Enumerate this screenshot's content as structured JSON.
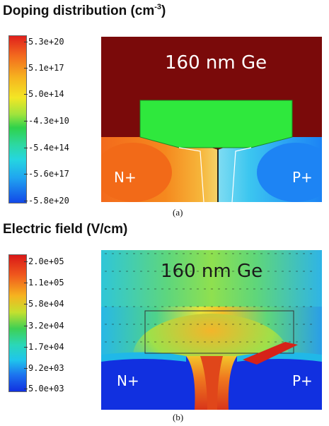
{
  "panel_a": {
    "title_main": "Doping distribution (cm",
    "title_sup": "-3",
    "title_end": ")",
    "colorbar_ticks": [
      "5.3e+20",
      "5.1e+17",
      "5.0e+14",
      "-4.3e+10",
      "-5.4e+14",
      "-5.6e+17",
      "-5.8e+20"
    ],
    "region_ge": "160 nm Ge",
    "region_n": "N+",
    "region_p": "P+",
    "caption": "(a)",
    "colors": {
      "ge": "#7a0a0a",
      "core": "#2ee83a",
      "n_region": "#f57c1e",
      "p_region": "#1f8ff5"
    }
  },
  "panel_b": {
    "title": "Electric field (V/cm)",
    "colorbar_ticks": [
      "2.0e+05",
      "1.1e+05",
      "5.8e+04",
      "3.2e+04",
      "1.7e+04",
      "9.2e+03",
      "5.0e+03"
    ],
    "region_ge": "160 nm Ge",
    "region_n": "N+",
    "region_p": "P+",
    "caption": "(b)"
  }
}
